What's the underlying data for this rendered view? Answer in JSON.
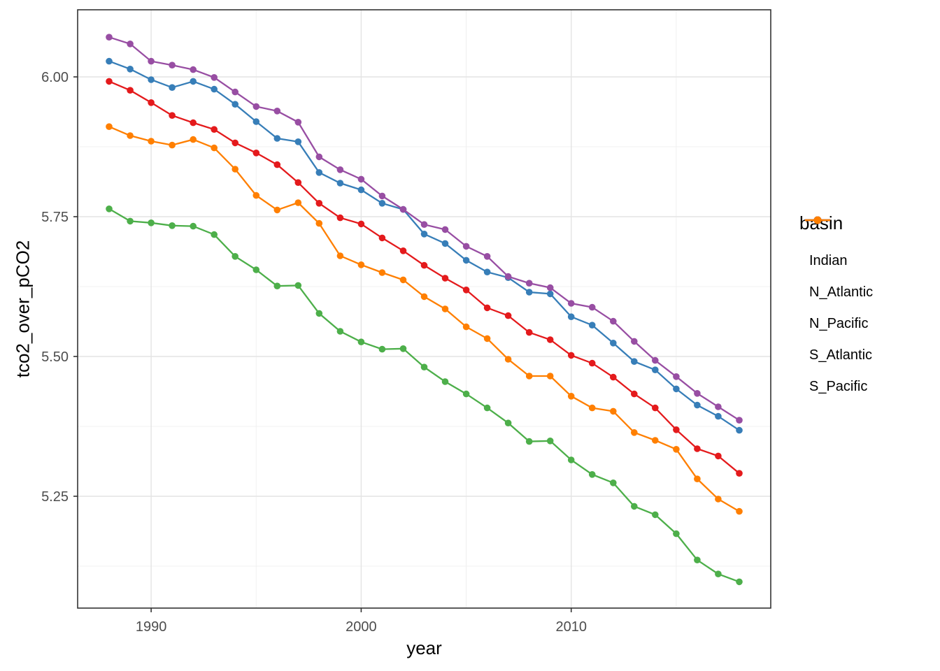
{
  "chart_data": {
    "type": "line",
    "title": "",
    "xlabel": "year",
    "ylabel": "tco2_over_pCO2",
    "legend_title": "basin",
    "legend_position": "right",
    "grid": true,
    "panel_border_color": "#333333",
    "grid_major_color": "#e4e4e4",
    "grid_minor_color": "#f0f0f0",
    "tick_label_color": "#4d4d4d",
    "xlim": [
      1986.5,
      2019.5
    ],
    "ylim": [
      5.05,
      6.12
    ],
    "x_ticks": {
      "major": [
        1990,
        2000,
        2010
      ],
      "minor": [
        1995,
        2005,
        2015
      ],
      "labels": [
        "1990",
        "2000",
        "2010"
      ]
    },
    "y_ticks": {
      "major": [
        6.0,
        5.75,
        5.5,
        5.25
      ],
      "minor": [
        5.875,
        5.625,
        5.375,
        5.125
      ],
      "labels": [
        "6.00",
        "5.75",
        "5.50",
        "5.25"
      ]
    },
    "x": [
      1988,
      1989,
      1990,
      1991,
      1992,
      1993,
      1994,
      1995,
      1996,
      1997,
      1998,
      1999,
      2000,
      2001,
      2002,
      2003,
      2004,
      2005,
      2006,
      2007,
      2008,
      2009,
      2010,
      2011,
      2012,
      2013,
      2014,
      2015,
      2016,
      2017,
      2018
    ],
    "series": [
      {
        "name": "Indian",
        "color": "#E41A1C",
        "values": [
          5.992,
          5.976,
          5.954,
          5.931,
          5.918,
          5.906,
          5.882,
          5.864,
          5.843,
          5.811,
          5.774,
          5.748,
          5.737,
          5.712,
          5.689,
          5.663,
          5.64,
          5.619,
          5.587,
          5.573,
          5.543,
          5.53,
          5.502,
          5.488,
          5.463,
          5.433,
          5.408,
          5.369,
          5.335,
          5.322,
          5.291
        ]
      },
      {
        "name": "N_Atlantic",
        "color": "#377EB8",
        "values": [
          6.028,
          6.014,
          5.995,
          5.981,
          5.992,
          5.978,
          5.951,
          5.92,
          5.89,
          5.884,
          5.829,
          5.81,
          5.798,
          5.774,
          5.763,
          5.719,
          5.702,
          5.672,
          5.651,
          5.641,
          5.615,
          5.612,
          5.571,
          5.556,
          5.524,
          5.491,
          5.476,
          5.442,
          5.413,
          5.393,
          5.368
        ]
      },
      {
        "name": "N_Pacific",
        "color": "#4DAF4A",
        "values": [
          5.764,
          5.742,
          5.739,
          5.734,
          5.733,
          5.718,
          5.679,
          5.655,
          5.626,
          5.627,
          5.577,
          5.545,
          5.526,
          5.513,
          5.514,
          5.481,
          5.455,
          5.433,
          5.408,
          5.381,
          5.348,
          5.349,
          5.315,
          5.289,
          5.274,
          5.232,
          5.217,
          5.183,
          5.136,
          5.111,
          5.097
        ]
      },
      {
        "name": "S_Atlantic",
        "color": "#984EA3",
        "values": [
          6.071,
          6.059,
          6.028,
          6.021,
          6.013,
          5.999,
          5.973,
          5.947,
          5.939,
          5.919,
          5.857,
          5.834,
          5.817,
          5.787,
          5.763,
          5.736,
          5.727,
          5.697,
          5.679,
          5.643,
          5.631,
          5.623,
          5.595,
          5.588,
          5.563,
          5.527,
          5.493,
          5.464,
          5.434,
          5.41,
          5.386
        ]
      },
      {
        "name": "S_Pacific",
        "color": "#FF7F00",
        "values": [
          5.911,
          5.895,
          5.885,
          5.878,
          5.888,
          5.873,
          5.835,
          5.788,
          5.762,
          5.775,
          5.738,
          5.68,
          5.664,
          5.65,
          5.637,
          5.607,
          5.585,
          5.553,
          5.532,
          5.495,
          5.465,
          5.465,
          5.429,
          5.408,
          5.402,
          5.364,
          5.35,
          5.334,
          5.281,
          5.245,
          5.223
        ]
      }
    ]
  }
}
